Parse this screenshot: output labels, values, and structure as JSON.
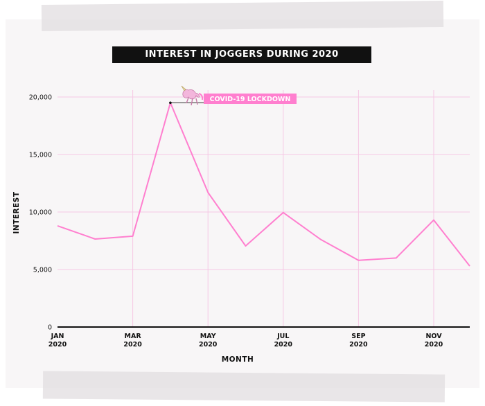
{
  "chart_data": {
    "type": "line",
    "title": "INTEREST IN JOGGERS DURING 2020",
    "xlabel": "MONTH",
    "ylabel": "INTEREST",
    "x": [
      "2020-01",
      "2020-02",
      "2020-03",
      "2020-04",
      "2020-05",
      "2020-06",
      "2020-07",
      "2020-08",
      "2020-09",
      "2020-10",
      "2020-11",
      "2020-12"
    ],
    "values": [
      8800,
      7650,
      7900,
      19500,
      11700,
      7050,
      9950,
      7600,
      5800,
      6000,
      9300,
      5300
    ],
    "ylim": [
      0,
      20000
    ],
    "yticks": [
      0,
      5000,
      10000,
      15000,
      20000
    ],
    "ytick_labels": [
      "0",
      "5,000",
      "10,000",
      "15,000",
      "20,000"
    ],
    "xticks": [
      {
        "month": "JAN",
        "year": "2020",
        "x": "2020-01"
      },
      {
        "month": "MAR",
        "year": "2020",
        "x": "2020-03"
      },
      {
        "month": "MAY",
        "year": "2020",
        "x": "2020-05"
      },
      {
        "month": "JUL",
        "year": "2020",
        "x": "2020-07"
      },
      {
        "month": "SEP",
        "year": "2020",
        "x": "2020-09"
      },
      {
        "month": "NOV",
        "year": "2020",
        "x": "2020-11"
      }
    ],
    "grid": true,
    "line_color": "#ff7fcf",
    "grid_color": "#f6c8e4",
    "annotation": {
      "label": "COVID-19 LOCKDOWN",
      "x": "2020-04",
      "y": 19500,
      "color": "#ff7fcf",
      "icon": "unicorn-icon"
    }
  }
}
